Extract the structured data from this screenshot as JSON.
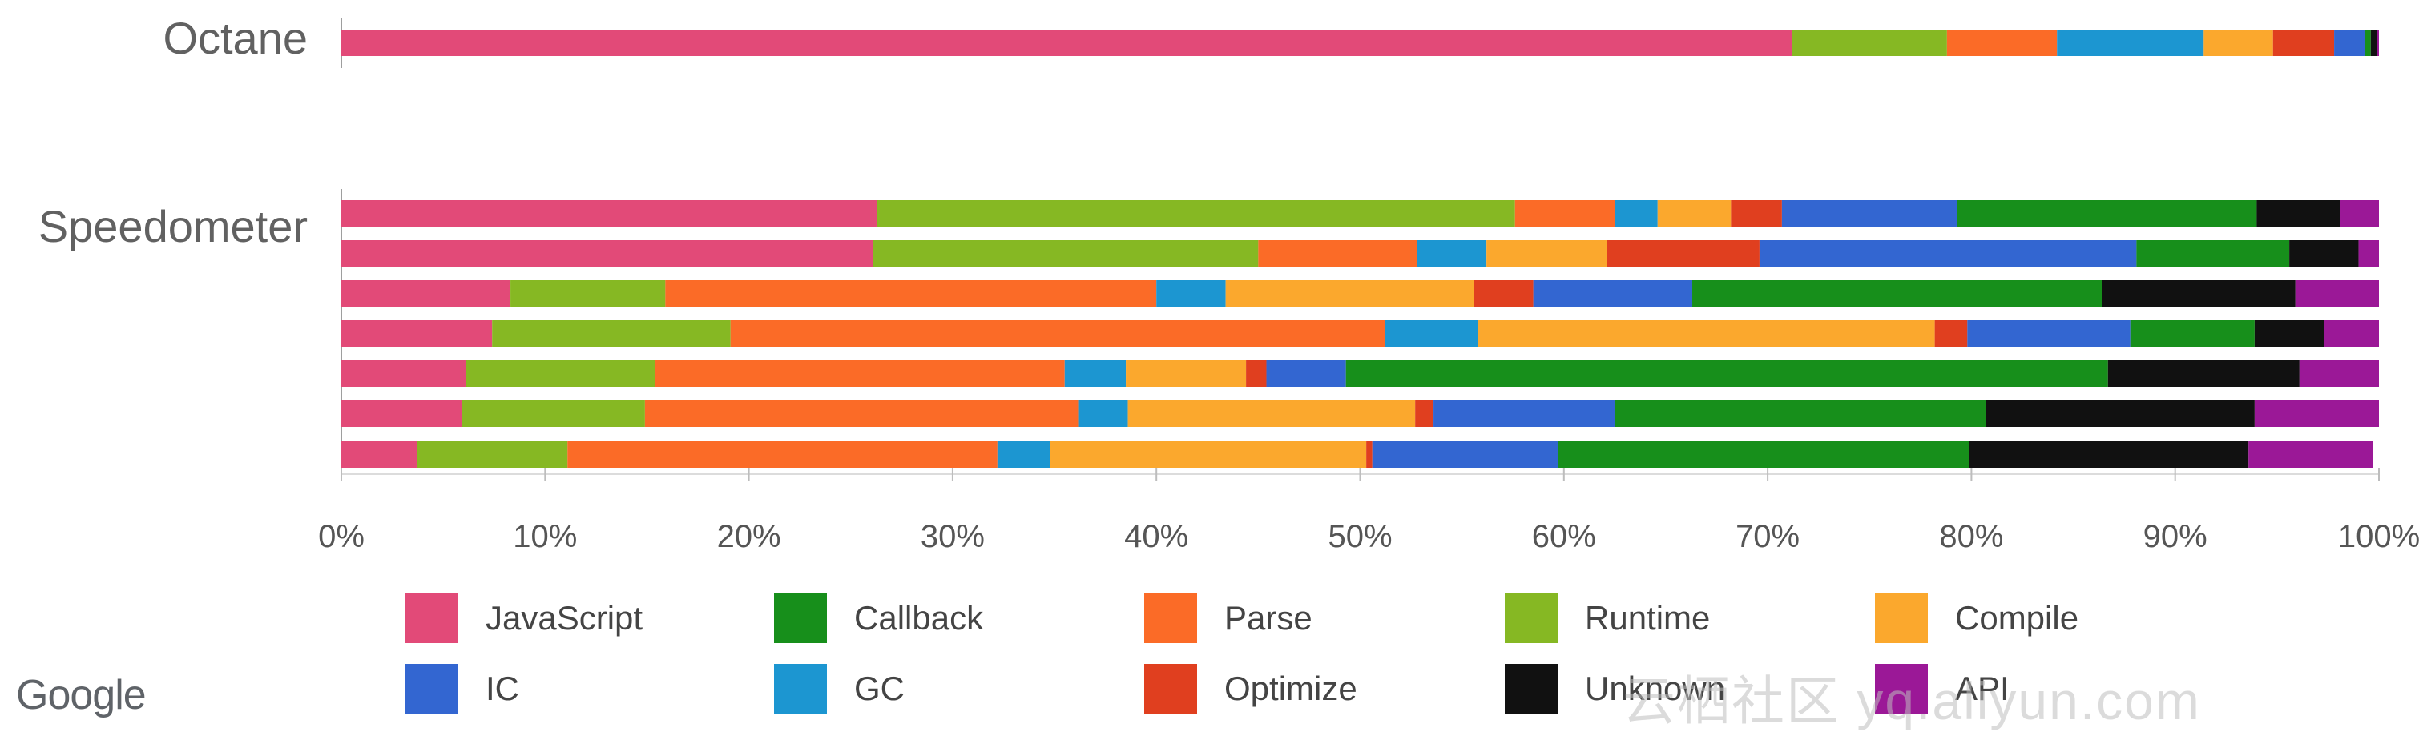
{
  "chart_data": {
    "type": "bar",
    "orientation": "horizontal",
    "stacked": true,
    "normalized": true,
    "xlim": [
      0,
      100
    ],
    "x_ticks": [
      "0%",
      "10%",
      "20%",
      "30%",
      "40%",
      "50%",
      "60%",
      "70%",
      "80%",
      "90%",
      "100%"
    ],
    "grid": false,
    "legend_position": "bottom",
    "groups": [
      "Octane",
      "Speedometer"
    ],
    "series": [
      {
        "name": "JavaScript",
        "color": "#E24A78"
      },
      {
        "name": "Callback",
        "color": "#178F1B"
      },
      {
        "name": "Parse",
        "color": "#FB6B27"
      },
      {
        "name": "Runtime",
        "color": "#86B823"
      },
      {
        "name": "Compile",
        "color": "#FBA82D"
      },
      {
        "name": "IC",
        "color": "#3366D1"
      },
      {
        "name": "GC",
        "color": "#1C96D1"
      },
      {
        "name": "Optimize",
        "color": "#E03F1F"
      },
      {
        "name": "Unknown",
        "color": "#111111"
      },
      {
        "name": "API",
        "color": "#9B1897"
      }
    ],
    "stack_order": [
      "JavaScript",
      "Runtime",
      "Parse",
      "GC",
      "Compile",
      "Optimize",
      "IC",
      "Callback",
      "Unknown",
      "API"
    ],
    "rows": [
      {
        "group": "Octane",
        "values": {
          "JavaScript": 71.2,
          "Runtime": 7.6,
          "Parse": 5.4,
          "GC": 7.2,
          "Compile": 3.4,
          "Optimize": 3.0,
          "IC": 1.5,
          "Callback": 0.3,
          "Unknown": 0.3,
          "API": 0.1
        }
      },
      {
        "group": "Speedometer",
        "values": {
          "JavaScript": 26.3,
          "Runtime": 31.3,
          "Parse": 4.9,
          "GC": 2.1,
          "Compile": 3.6,
          "Optimize": 2.5,
          "IC": 8.6,
          "Callback": 14.7,
          "Unknown": 4.1,
          "API": 1.9
        }
      },
      {
        "group": "Speedometer",
        "values": {
          "JavaScript": 26.1,
          "Runtime": 18.9,
          "Parse": 7.8,
          "GC": 3.4,
          "Compile": 5.9,
          "Optimize": 7.5,
          "IC": 18.5,
          "Callback": 7.5,
          "Unknown": 3.4,
          "API": 1.0
        }
      },
      {
        "group": "Speedometer",
        "values": {
          "JavaScript": 8.3,
          "Runtime": 7.6,
          "Parse": 24.1,
          "GC": 3.4,
          "Compile": 12.2,
          "Optimize": 2.9,
          "IC": 7.8,
          "Callback": 20.1,
          "Unknown": 9.5,
          "API": 4.1
        }
      },
      {
        "group": "Speedometer",
        "values": {
          "JavaScript": 7.4,
          "Runtime": 11.7,
          "Parse": 32.1,
          "GC": 4.6,
          "Compile": 22.4,
          "Optimize": 1.6,
          "IC": 8.0,
          "Callback": 6.1,
          "Unknown": 3.4,
          "API": 2.7
        }
      },
      {
        "group": "Speedometer",
        "values": {
          "JavaScript": 6.1,
          "Runtime": 9.3,
          "Parse": 20.1,
          "GC": 3.0,
          "Compile": 5.9,
          "Optimize": 1.0,
          "IC": 3.9,
          "Callback": 37.4,
          "Unknown": 9.4,
          "API": 3.9
        }
      },
      {
        "group": "Speedometer",
        "values": {
          "JavaScript": 5.9,
          "Runtime": 9.0,
          "Parse": 21.3,
          "GC": 2.4,
          "Compile": 14.1,
          "Optimize": 0.9,
          "IC": 8.9,
          "Callback": 18.2,
          "Unknown": 13.2,
          "API": 6.1
        }
      },
      {
        "group": "Speedometer",
        "values": {
          "JavaScript": 3.7,
          "Runtime": 7.4,
          "Parse": 21.1,
          "GC": 2.6,
          "Compile": 15.5,
          "Optimize": 0.3,
          "IC": 9.1,
          "Callback": 20.2,
          "Unknown": 13.7,
          "API": 6.1
        }
      }
    ]
  },
  "legend": {
    "items": [
      {
        "label": "JavaScript",
        "color": "#E24A78"
      },
      {
        "label": "Callback",
        "color": "#178F1B"
      },
      {
        "label": "Parse",
        "color": "#FB6B27"
      },
      {
        "label": "Runtime",
        "color": "#86B823"
      },
      {
        "label": "Compile",
        "color": "#FBA82D"
      },
      {
        "label": "IC",
        "color": "#3366D1"
      },
      {
        "label": "GC",
        "color": "#1C96D1"
      },
      {
        "label": "Optimize",
        "color": "#E03F1F"
      },
      {
        "label": "Unknown",
        "color": "#111111"
      },
      {
        "label": "API",
        "color": "#9B1897"
      }
    ]
  },
  "branding": {
    "logo_text": "Google"
  },
  "watermark": {
    "text": "云栖社区 yq.aliyun.com"
  }
}
